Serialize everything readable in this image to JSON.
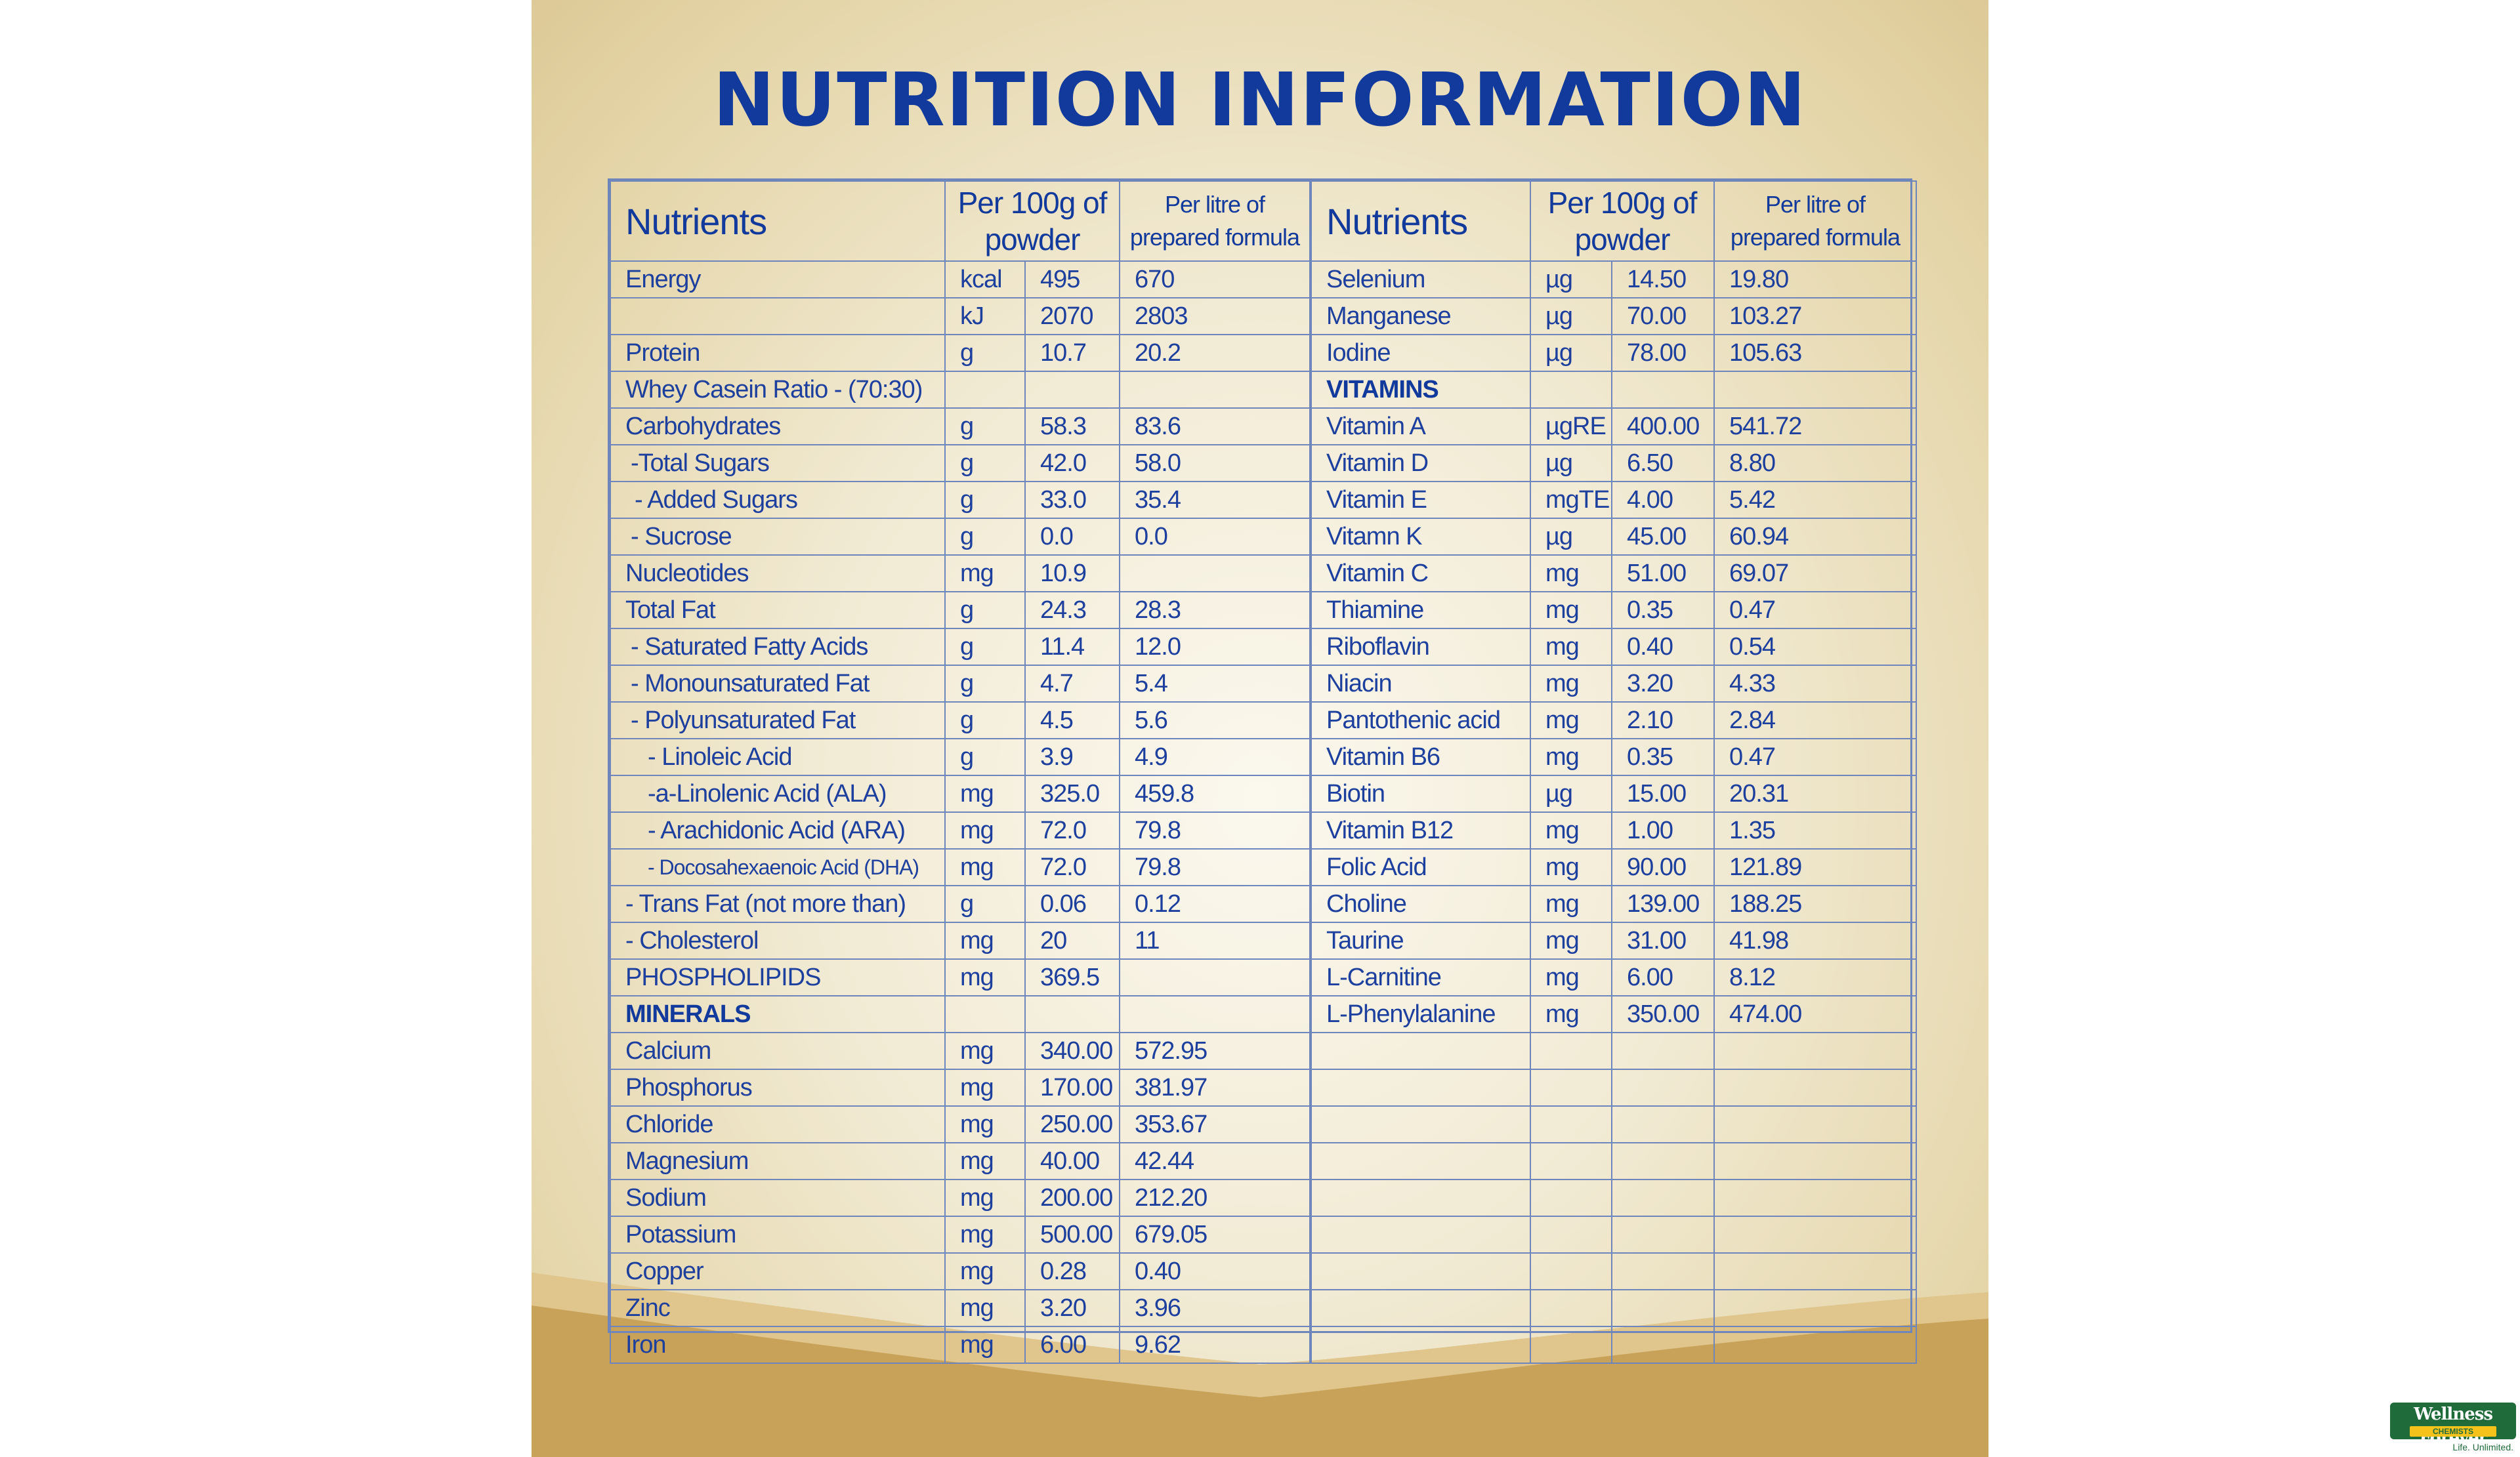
{
  "title": "NUTRITION INFORMATION",
  "headers": {
    "nutrients": "Nutrients",
    "per100g_line1": "Per 100g of",
    "per100g_line2": "powder",
    "perlitre_line1": "Per litre of",
    "perlitre_line2": "prepared formula"
  },
  "left_rows": [
    {
      "name": "Energy",
      "unit": "kcal",
      "per100g": "495",
      "perlitre": "670"
    },
    {
      "name": "",
      "unit": "kJ",
      "per100g": "2070",
      "perlitre": "2803"
    },
    {
      "name": "Protein",
      "unit": "g",
      "per100g": "10.7",
      "perlitre": "20.2"
    },
    {
      "name": "Whey Casein Ratio - (70:30)",
      "unit": "",
      "per100g": "",
      "perlitre": ""
    },
    {
      "name": "Carbohydrates",
      "unit": "g",
      "per100g": "58.3",
      "perlitre": "83.6"
    },
    {
      "name": "-Total Sugars",
      "unit": "g",
      "per100g": "42.0",
      "perlitre": "58.0",
      "indent": 1
    },
    {
      "name": "- Added Sugars",
      "unit": "g",
      "per100g": "33.0",
      "perlitre": "35.4",
      "indent": 2
    },
    {
      "name": "- Sucrose",
      "unit": "g",
      "per100g": "0.0",
      "perlitre": "0.0",
      "indent": 1
    },
    {
      "name": "Nucleotides",
      "unit": "mg",
      "per100g": "10.9",
      "perlitre": ""
    },
    {
      "name": "Total Fat",
      "unit": "g",
      "per100g": "24.3",
      "perlitre": "28.3"
    },
    {
      "name": "- Saturated Fatty Acids",
      "unit": "g",
      "per100g": "11.4",
      "perlitre": "12.0",
      "indent": 1
    },
    {
      "name": "- Monounsaturated Fat",
      "unit": "g",
      "per100g": "4.7",
      "perlitre": "5.4",
      "indent": 1
    },
    {
      "name": "- Polyunsaturated Fat",
      "unit": "g",
      "per100g": "4.5",
      "perlitre": "5.6",
      "indent": 1
    },
    {
      "name": "- Linoleic Acid",
      "unit": "g",
      "per100g": "3.9",
      "perlitre": "4.9",
      "indent": 3
    },
    {
      "name": "-a-Linolenic Acid (ALA)",
      "unit": "mg",
      "per100g": "325.0",
      "perlitre": "459.8",
      "indent": 3
    },
    {
      "name": "- Arachidonic Acid (ARA)",
      "unit": "mg",
      "per100g": "72.0",
      "perlitre": "79.8",
      "indent": 3
    },
    {
      "name": "- Docosahexaenoic Acid (DHA)",
      "unit": "mg",
      "per100g": "72.0",
      "perlitre": "79.8",
      "indent": 4
    },
    {
      "name": "- Trans Fat (not more than)",
      "unit": "g",
      "per100g": "0.06",
      "perlitre": "0.12"
    },
    {
      "name": "- Cholesterol",
      "unit": "mg",
      "per100g": "20",
      "perlitre": "11"
    },
    {
      "name": "PHOSPHOLIPIDS",
      "unit": "mg",
      "per100g": "369.5",
      "perlitre": ""
    },
    {
      "name": "MINERALS",
      "unit": "",
      "per100g": "",
      "perlitre": "",
      "section": true
    },
    {
      "name": "Calcium",
      "unit": "mg",
      "per100g": "340.00",
      "perlitre": "572.95"
    },
    {
      "name": "Phosphorus",
      "unit": "mg",
      "per100g": "170.00",
      "perlitre": "381.97"
    },
    {
      "name": "Chloride",
      "unit": "mg",
      "per100g": "250.00",
      "perlitre": "353.67"
    },
    {
      "name": "Magnesium",
      "unit": "mg",
      "per100g": "40.00",
      "perlitre": "42.44"
    },
    {
      "name": "Sodium",
      "unit": "mg",
      "per100g": "200.00",
      "perlitre": "212.20"
    },
    {
      "name": "Potassium",
      "unit": "mg",
      "per100g": "500.00",
      "perlitre": "679.05"
    },
    {
      "name": "Copper",
      "unit": "mg",
      "per100g": "0.28",
      "perlitre": "0.40"
    },
    {
      "name": "Zinc",
      "unit": "mg",
      "per100g": "3.20",
      "perlitre": "3.96"
    },
    {
      "name": "Iron",
      "unit": "mg",
      "per100g": "6.00",
      "perlitre": "9.62"
    }
  ],
  "right_rows": [
    {
      "name": "Selenium",
      "unit": "µg",
      "per100g": "14.50",
      "perlitre": "19.80"
    },
    {
      "name": "Manganese",
      "unit": "µg",
      "per100g": "70.00",
      "perlitre": "103.27"
    },
    {
      "name": "Iodine",
      "unit": "µg",
      "per100g": "78.00",
      "perlitre": "105.63"
    },
    {
      "name": "VITAMINS",
      "unit": "",
      "per100g": "",
      "perlitre": "",
      "section": true
    },
    {
      "name": "Vitamin A",
      "unit": "µgRE",
      "per100g": "400.00",
      "perlitre": "541.72"
    },
    {
      "name": "Vitamin D",
      "unit": "µg",
      "per100g": "6.50",
      "perlitre": "8.80"
    },
    {
      "name": "Vitamin E",
      "unit": "mgTE",
      "per100g": "4.00",
      "perlitre": "5.42"
    },
    {
      "name": "Vitamn K",
      "unit": "µg",
      "per100g": "45.00",
      "perlitre": "60.94"
    },
    {
      "name": "Vitamin C",
      "unit": "mg",
      "per100g": "51.00",
      "perlitre": "69.07"
    },
    {
      "name": "Thiamine",
      "unit": "mg",
      "per100g": "0.35",
      "perlitre": "0.47"
    },
    {
      "name": "Riboflavin",
      "unit": "mg",
      "per100g": "0.40",
      "perlitre": "0.54"
    },
    {
      "name": "Niacin",
      "unit": "mg",
      "per100g": "3.20",
      "perlitre": "4.33"
    },
    {
      "name": "Pantothenic acid",
      "unit": "mg",
      "per100g": "2.10",
      "perlitre": "2.84"
    },
    {
      "name": "Vitamin B6",
      "unit": "mg",
      "per100g": "0.35",
      "perlitre": "0.47"
    },
    {
      "name": "Biotin",
      "unit": "µg",
      "per100g": "15.00",
      "perlitre": "20.31"
    },
    {
      "name": "Vitamin B12",
      "unit": "mg",
      "per100g": "1.00",
      "perlitre": "1.35"
    },
    {
      "name": "Folic Acid",
      "unit": "mg",
      "per100g": "90.00",
      "perlitre": "121.89"
    },
    {
      "name": "Choline",
      "unit": "mg",
      "per100g": "139.00",
      "perlitre": "188.25"
    },
    {
      "name": "Taurine",
      "unit": "mg",
      "per100g": "31.00",
      "perlitre": "41.98"
    },
    {
      "name": "L-Carnitine",
      "unit": "mg",
      "per100g": "6.00",
      "perlitre": "8.12"
    },
    {
      "name": "L-Phenylalanine",
      "unit": "mg",
      "per100g": "350.00",
      "perlitre": "474.00"
    },
    {
      "name": "",
      "unit": "",
      "per100g": "",
      "perlitre": ""
    },
    {
      "name": "",
      "unit": "",
      "per100g": "",
      "perlitre": ""
    },
    {
      "name": "",
      "unit": "",
      "per100g": "",
      "perlitre": ""
    },
    {
      "name": "",
      "unit": "",
      "per100g": "",
      "perlitre": ""
    },
    {
      "name": "",
      "unit": "",
      "per100g": "",
      "perlitre": ""
    },
    {
      "name": "",
      "unit": "",
      "per100g": "",
      "perlitre": ""
    },
    {
      "name": "",
      "unit": "",
      "per100g": "",
      "perlitre": ""
    },
    {
      "name": "",
      "unit": "",
      "per100g": "",
      "perlitre": ""
    },
    {
      "name": "",
      "unit": "",
      "per100g": "",
      "perlitre": ""
    }
  ],
  "logo": {
    "name": "Wellness Forever",
    "sub": "CHEMISTS",
    "tagline": "Life. Unlimited."
  },
  "colors": {
    "title": "#123a9c",
    "text": "#1d3f9e",
    "grid": "#6f86bd",
    "gold": "#c9a25a",
    "logo_green": "#1f6b3a"
  }
}
